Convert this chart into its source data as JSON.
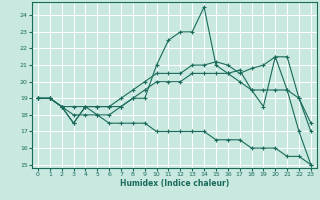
{
  "title": "",
  "xlabel": "Humidex (Indice chaleur)",
  "ylabel": "",
  "bg_color": "#c8e8e0",
  "line_color": "#1a6b5a",
  "grid_color": "#ffffff",
  "xlim": [
    -0.5,
    23.5
  ],
  "ylim": [
    14.8,
    24.8
  ],
  "yticks": [
    15,
    16,
    17,
    18,
    19,
    20,
    21,
    22,
    23,
    24
  ],
  "xticks": [
    0,
    1,
    2,
    3,
    4,
    5,
    6,
    7,
    8,
    9,
    10,
    11,
    12,
    13,
    14,
    15,
    16,
    17,
    18,
    19,
    20,
    21,
    22,
    23
  ],
  "lines": [
    {
      "x": [
        0,
        1,
        2,
        3,
        4,
        5,
        6,
        7,
        8,
        9,
        10,
        11,
        12,
        13,
        14,
        15,
        16,
        17,
        18,
        19,
        20,
        21,
        22,
        23
      ],
      "y": [
        19,
        19,
        18.5,
        17.5,
        18.5,
        18,
        18,
        18.5,
        19,
        19,
        21,
        22.5,
        23,
        23,
        24.5,
        21,
        20.5,
        20.7,
        19.5,
        18.5,
        21.5,
        19.5,
        17,
        15
      ]
    },
    {
      "x": [
        0,
        1,
        2,
        3,
        4,
        5,
        6,
        7,
        8,
        9,
        10,
        11,
        12,
        13,
        14,
        15,
        16,
        17,
        18,
        19,
        20,
        21,
        22,
        23
      ],
      "y": [
        19,
        19,
        18.5,
        17.5,
        18.5,
        18.5,
        18.5,
        19,
        19.5,
        20,
        20.5,
        20.5,
        20.5,
        21,
        21,
        21.2,
        21,
        20.5,
        20.8,
        21,
        21.5,
        21.5,
        19,
        17
      ]
    },
    {
      "x": [
        0,
        1,
        2,
        3,
        4,
        5,
        6,
        7,
        8,
        9,
        10,
        11,
        12,
        13,
        14,
        15,
        16,
        17,
        18,
        19,
        20,
        21,
        22,
        23
      ],
      "y": [
        19,
        19,
        18.5,
        18.5,
        18.5,
        18.5,
        18.5,
        18.5,
        19,
        19.5,
        20,
        20,
        20,
        20.5,
        20.5,
        20.5,
        20.5,
        20,
        19.5,
        19.5,
        19.5,
        19.5,
        19,
        17.5
      ]
    },
    {
      "x": [
        0,
        1,
        2,
        3,
        4,
        5,
        6,
        7,
        8,
        9,
        10,
        11,
        12,
        13,
        14,
        15,
        16,
        17,
        18,
        19,
        20,
        21,
        22,
        23
      ],
      "y": [
        19,
        19,
        18.5,
        18,
        18,
        18,
        17.5,
        17.5,
        17.5,
        17.5,
        17,
        17,
        17,
        17,
        17,
        16.5,
        16.5,
        16.5,
        16,
        16,
        16,
        15.5,
        15.5,
        15
      ]
    }
  ]
}
